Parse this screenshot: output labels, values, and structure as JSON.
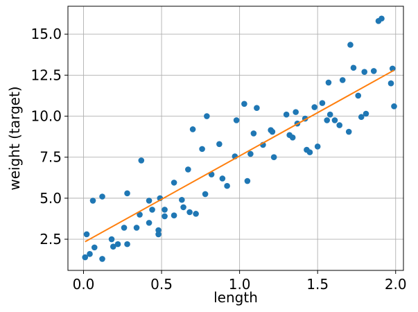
{
  "chart_data": {
    "type": "scatter",
    "xlabel": "length",
    "ylabel": "weight (target)",
    "xlim": [
      -0.1,
      2.05
    ],
    "ylim": [
      0.6,
      16.7
    ],
    "xticks": [
      0.0,
      0.5,
      1.0,
      1.5,
      2.0
    ],
    "xtick_labels": [
      "0.0",
      "0.5",
      "1.0",
      "1.5",
      "2.0"
    ],
    "yticks": [
      2.5,
      5.0,
      7.5,
      10.0,
      12.5,
      15.0
    ],
    "ytick_labels": [
      "2.5",
      "5.0",
      "7.5",
      "10.0",
      "12.5",
      "15.0"
    ],
    "grid": true,
    "colors": {
      "points": "#1f77b4",
      "line": "#ff7f0e",
      "grid": "#b0b0b0"
    },
    "series": [
      {
        "kind": "points",
        "x": [
          0.01,
          0.02,
          0.04,
          0.06,
          0.07,
          0.12,
          0.12,
          0.18,
          0.19,
          0.22,
          0.26,
          0.28,
          0.28,
          0.34,
          0.36,
          0.37,
          0.42,
          0.42,
          0.44,
          0.48,
          0.48,
          0.49,
          0.52,
          0.52,
          0.58,
          0.58,
          0.63,
          0.64,
          0.67,
          0.68,
          0.7,
          0.72,
          0.76,
          0.78,
          0.79,
          0.82,
          0.87,
          0.89,
          0.92,
          0.97,
          0.98,
          1.03,
          1.05,
          1.07,
          1.09,
          1.11,
          1.15,
          1.2,
          1.21,
          1.22,
          1.3,
          1.32,
          1.34,
          1.36,
          1.37,
          1.42,
          1.43,
          1.45,
          1.48,
          1.5,
          1.53,
          1.56,
          1.57,
          1.58,
          1.61,
          1.64,
          1.66,
          1.7,
          1.71,
          1.73,
          1.76,
          1.78,
          1.8,
          1.81,
          1.86,
          1.89,
          1.91,
          1.97,
          1.98,
          1.99
        ],
        "y": [
          1.4,
          2.8,
          1.6,
          4.85,
          2.0,
          5.1,
          1.3,
          2.5,
          2.05,
          2.2,
          3.2,
          5.3,
          2.2,
          3.2,
          4.0,
          7.3,
          3.5,
          4.85,
          4.3,
          3.05,
          2.8,
          5.0,
          4.3,
          3.9,
          5.95,
          3.95,
          4.9,
          4.45,
          6.75,
          4.15,
          9.2,
          4.05,
          8.0,
          5.25,
          10.0,
          6.45,
          8.3,
          6.2,
          5.75,
          7.55,
          9.75,
          10.75,
          6.05,
          7.7,
          8.95,
          10.5,
          8.25,
          9.15,
          9.05,
          7.5,
          10.1,
          8.85,
          8.7,
          10.25,
          9.55,
          9.85,
          7.95,
          7.8,
          10.55,
          8.15,
          10.8,
          9.75,
          12.05,
          10.1,
          9.75,
          9.45,
          12.2,
          9.05,
          14.35,
          12.95,
          11.25,
          9.95,
          12.7,
          10.15,
          12.75,
          15.8,
          15.95,
          12.0,
          12.9,
          10.6
        ]
      },
      {
        "kind": "line",
        "x": [
          0.01,
          1.99
        ],
        "y": [
          2.35,
          12.8
        ]
      }
    ]
  }
}
